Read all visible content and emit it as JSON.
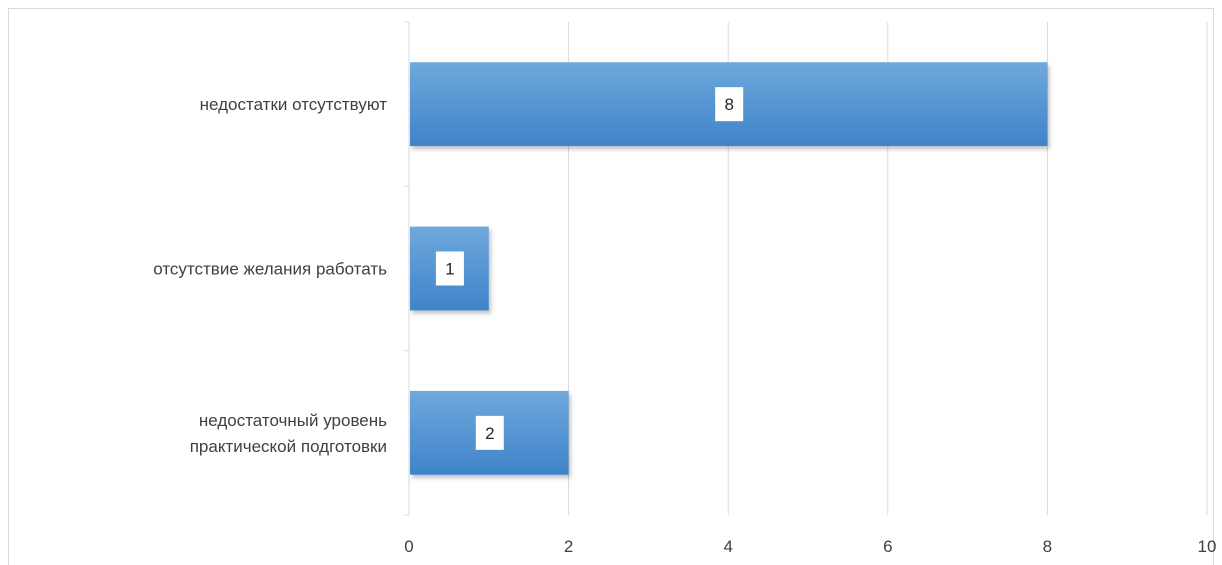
{
  "chart_data": {
    "type": "bar",
    "orientation": "horizontal",
    "categories": [
      [
        "недостатки отсутствуют"
      ],
      [
        "отсутствие желания работать"
      ],
      [
        "недостаточный уровень",
        "практической подготовки"
      ]
    ],
    "values": [
      8,
      1,
      2
    ],
    "xlim": [
      0,
      10
    ],
    "xticks": [
      0,
      2,
      4,
      6,
      8,
      10
    ],
    "grid": true,
    "data_labels": true,
    "colors": {
      "bar_top": "#6fa8dc",
      "bar_bottom": "#3f83c9",
      "grid": "#d9d9d9",
      "text": "#404040"
    }
  }
}
